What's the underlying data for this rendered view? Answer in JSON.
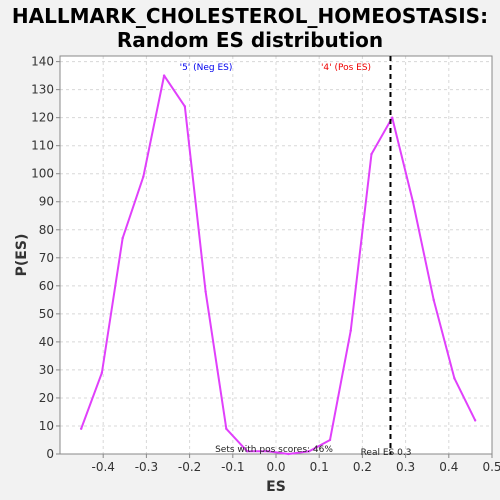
{
  "chart_data": {
    "type": "line",
    "title": "HALLMARK_CHOLESTEROL_HOMEOSTASIS:",
    "subtitle": "Random ES distribution",
    "xlabel": "ES",
    "ylabel": "P(ES)",
    "xlim": [
      -0.5,
      0.5
    ],
    "ylim": [
      0,
      142
    ],
    "x_ticks": [
      "-0.4",
      "-0.3",
      "-0.2",
      "-0.1",
      "0.0",
      "0.1",
      "0.2",
      "0.3",
      "0.4",
      "0.5"
    ],
    "y_ticks": [
      "0",
      "10",
      "20",
      "30",
      "40",
      "50",
      "60",
      "70",
      "80",
      "90",
      "100",
      "110",
      "120",
      "130",
      "140"
    ],
    "grid": true,
    "series": [
      {
        "color": "#e040fb",
        "x": [
          -0.451,
          -0.403,
          -0.355,
          -0.307,
          -0.259,
          -0.211,
          -0.163,
          -0.115,
          -0.067,
          -0.019,
          0.029,
          0.077,
          0.125,
          0.173,
          0.221,
          0.269,
          0.317,
          0.365,
          0.413,
          0.461
        ],
        "y": [
          9,
          29,
          77,
          99,
          135,
          124,
          58,
          9,
          1,
          1,
          0,
          1,
          5,
          44,
          107,
          120,
          90,
          55,
          27,
          12
        ]
      }
    ],
    "real_es": 0.265,
    "annotations": {
      "neg_label": "'5' (Neg ES)",
      "pos_label": "'4' (Pos ES)",
      "pos_scores": "Sets with pos scores: 46%",
      "real_es_label": "Real ES 0.3"
    },
    "colors": {
      "line": "#e040fb",
      "neg_label": "#0000ee",
      "pos_label": "#ee0000",
      "plot_bg": "#ffffff",
      "page_bg": "#f2f2f2",
      "grid": "#d8d8d8"
    }
  }
}
